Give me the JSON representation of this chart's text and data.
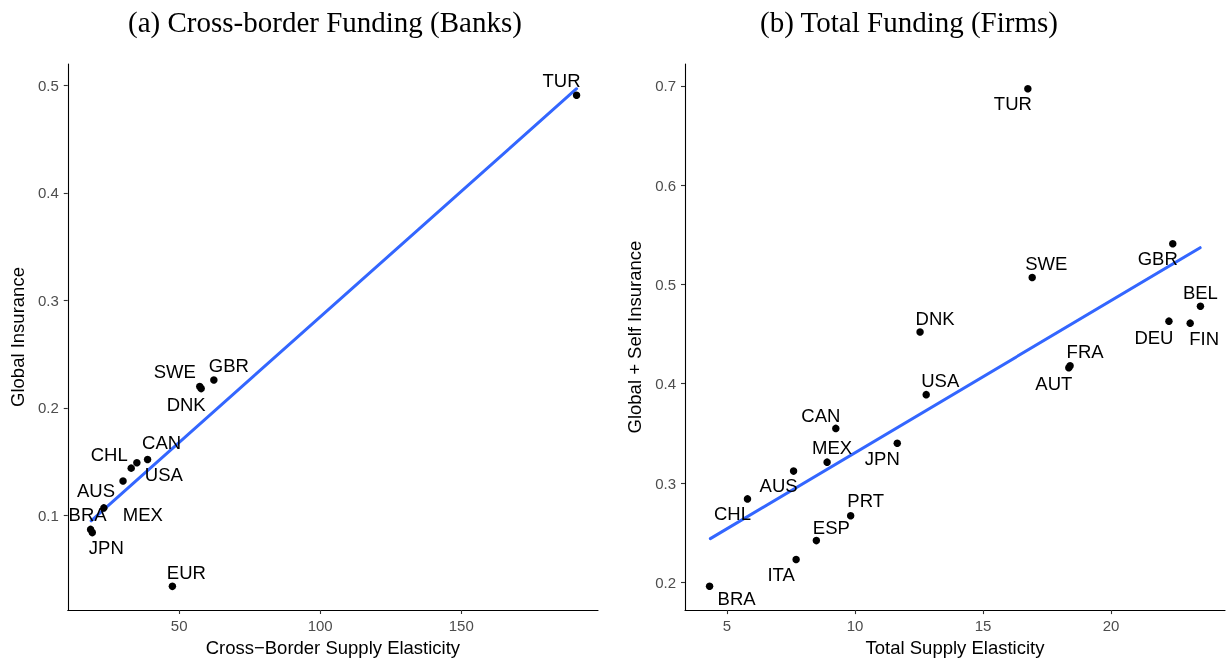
{
  "chart_data": [
    {
      "type": "scatter",
      "title": "(a) Cross-border Funding (Banks)",
      "xlabel": "Cross−Border Supply Elasticity",
      "ylabel": "Global Insurance",
      "xlim": [
        10.5,
        198.5
      ],
      "ylim": [
        0.012,
        0.52
      ],
      "xticks": [
        50,
        100,
        150
      ],
      "yticks": [
        0.1,
        0.2,
        0.3,
        0.4,
        0.5
      ],
      "series": [
        {
          "type": "scatter",
          "marker": "circle",
          "color": "#000000",
          "x": [
            190.9,
            62.3,
            57.3,
            57.8,
            38.8,
            35.0,
            33.0,
            30.1,
            23.3,
            18.6,
            19.2,
            47.6
          ],
          "values": [
            0.491,
            0.226,
            0.22,
            0.218,
            0.152,
            0.149,
            0.144,
            0.132,
            0.107,
            0.087,
            0.084,
            0.034
          ]
        },
        {
          "type": "line",
          "marker": "none",
          "line_style": "solid",
          "color": "#3366ff",
          "x": [
            18.8,
            190.9
          ],
          "values": [
            0.095,
            0.497
          ]
        }
      ],
      "annotations": [
        {
          "text": "TUR",
          "x": 190.9,
          "y": 0.491
        },
        {
          "text": "GBR",
          "x": 62.3,
          "y": 0.226
        },
        {
          "text": "SWE",
          "x": 57.3,
          "y": 0.22
        },
        {
          "text": "DNK",
          "x": 57.8,
          "y": 0.218
        },
        {
          "text": "CAN",
          "x": 38.8,
          "y": 0.152
        },
        {
          "text": "USA",
          "x": 35.0,
          "y": 0.149
        },
        {
          "text": "CHL",
          "x": 33.0,
          "y": 0.144
        },
        {
          "text": "AUS",
          "x": 30.1,
          "y": 0.132
        },
        {
          "text": "MEX",
          "x": 23.3,
          "y": 0.107
        },
        {
          "text": "BRA",
          "x": 18.6,
          "y": 0.087
        },
        {
          "text": "JPN",
          "x": 19.2,
          "y": 0.084
        },
        {
          "text": "EUR",
          "x": 47.6,
          "y": 0.034
        }
      ]
    },
    {
      "type": "scatter",
      "title": "(b) Total Funding (Firms)",
      "xlabel": "Total Supply Elasticity",
      "ylabel": "Global + Self Insurance",
      "xlim": [
        3.36,
        24.45
      ],
      "ylim": [
        0.172,
        0.722
      ],
      "xticks": [
        5,
        10,
        15,
        20
      ],
      "yticks": [
        0.2,
        0.3,
        0.4,
        0.5,
        0.6,
        0.7
      ],
      "series": [
        {
          "type": "scatter",
          "marker": "circle",
          "color": "#000000",
          "x": [
            16.75,
            22.41,
            16.92,
            23.49,
            12.54,
            22.26,
            23.09,
            18.4,
            18.35,
            12.78,
            9.25,
            11.65,
            8.91,
            7.6,
            5.8,
            9.83,
            8.49,
            7.7,
            4.32
          ],
          "values": [
            0.697,
            0.541,
            0.507,
            0.478,
            0.452,
            0.463,
            0.461,
            0.418,
            0.416,
            0.389,
            0.355,
            0.34,
            0.321,
            0.312,
            0.284,
            0.267,
            0.242,
            0.223,
            0.196
          ]
        },
        {
          "type": "line",
          "marker": "none",
          "line_style": "solid",
          "color": "#3366ff",
          "x": [
            4.35,
            23.48
          ],
          "values": [
            0.244,
            0.537
          ]
        }
      ],
      "annotations": [
        {
          "text": "TUR",
          "x": 16.75,
          "y": 0.697
        },
        {
          "text": "GBR",
          "x": 22.41,
          "y": 0.541
        },
        {
          "text": "SWE",
          "x": 16.92,
          "y": 0.507
        },
        {
          "text": "BEL",
          "x": 23.49,
          "y": 0.478
        },
        {
          "text": "DNK",
          "x": 12.54,
          "y": 0.452
        },
        {
          "text": "DEU",
          "x": 22.26,
          "y": 0.463
        },
        {
          "text": "FIN",
          "x": 23.09,
          "y": 0.461
        },
        {
          "text": "FRA",
          "x": 18.4,
          "y": 0.418
        },
        {
          "text": "AUT",
          "x": 18.35,
          "y": 0.416
        },
        {
          "text": "USA",
          "x": 12.78,
          "y": 0.389
        },
        {
          "text": "CAN",
          "x": 9.25,
          "y": 0.355
        },
        {
          "text": "JPN",
          "x": 11.65,
          "y": 0.34
        },
        {
          "text": "MEX",
          "x": 8.91,
          "y": 0.321
        },
        {
          "text": "AUS",
          "x": 7.6,
          "y": 0.312
        },
        {
          "text": "CHL",
          "x": 5.8,
          "y": 0.284
        },
        {
          "text": "PRT",
          "x": 9.83,
          "y": 0.267
        },
        {
          "text": "ESP",
          "x": 8.49,
          "y": 0.242
        },
        {
          "text": "ITA",
          "x": 7.7,
          "y": 0.223
        },
        {
          "text": "BRA",
          "x": 4.32,
          "y": 0.196
        }
      ]
    }
  ]
}
